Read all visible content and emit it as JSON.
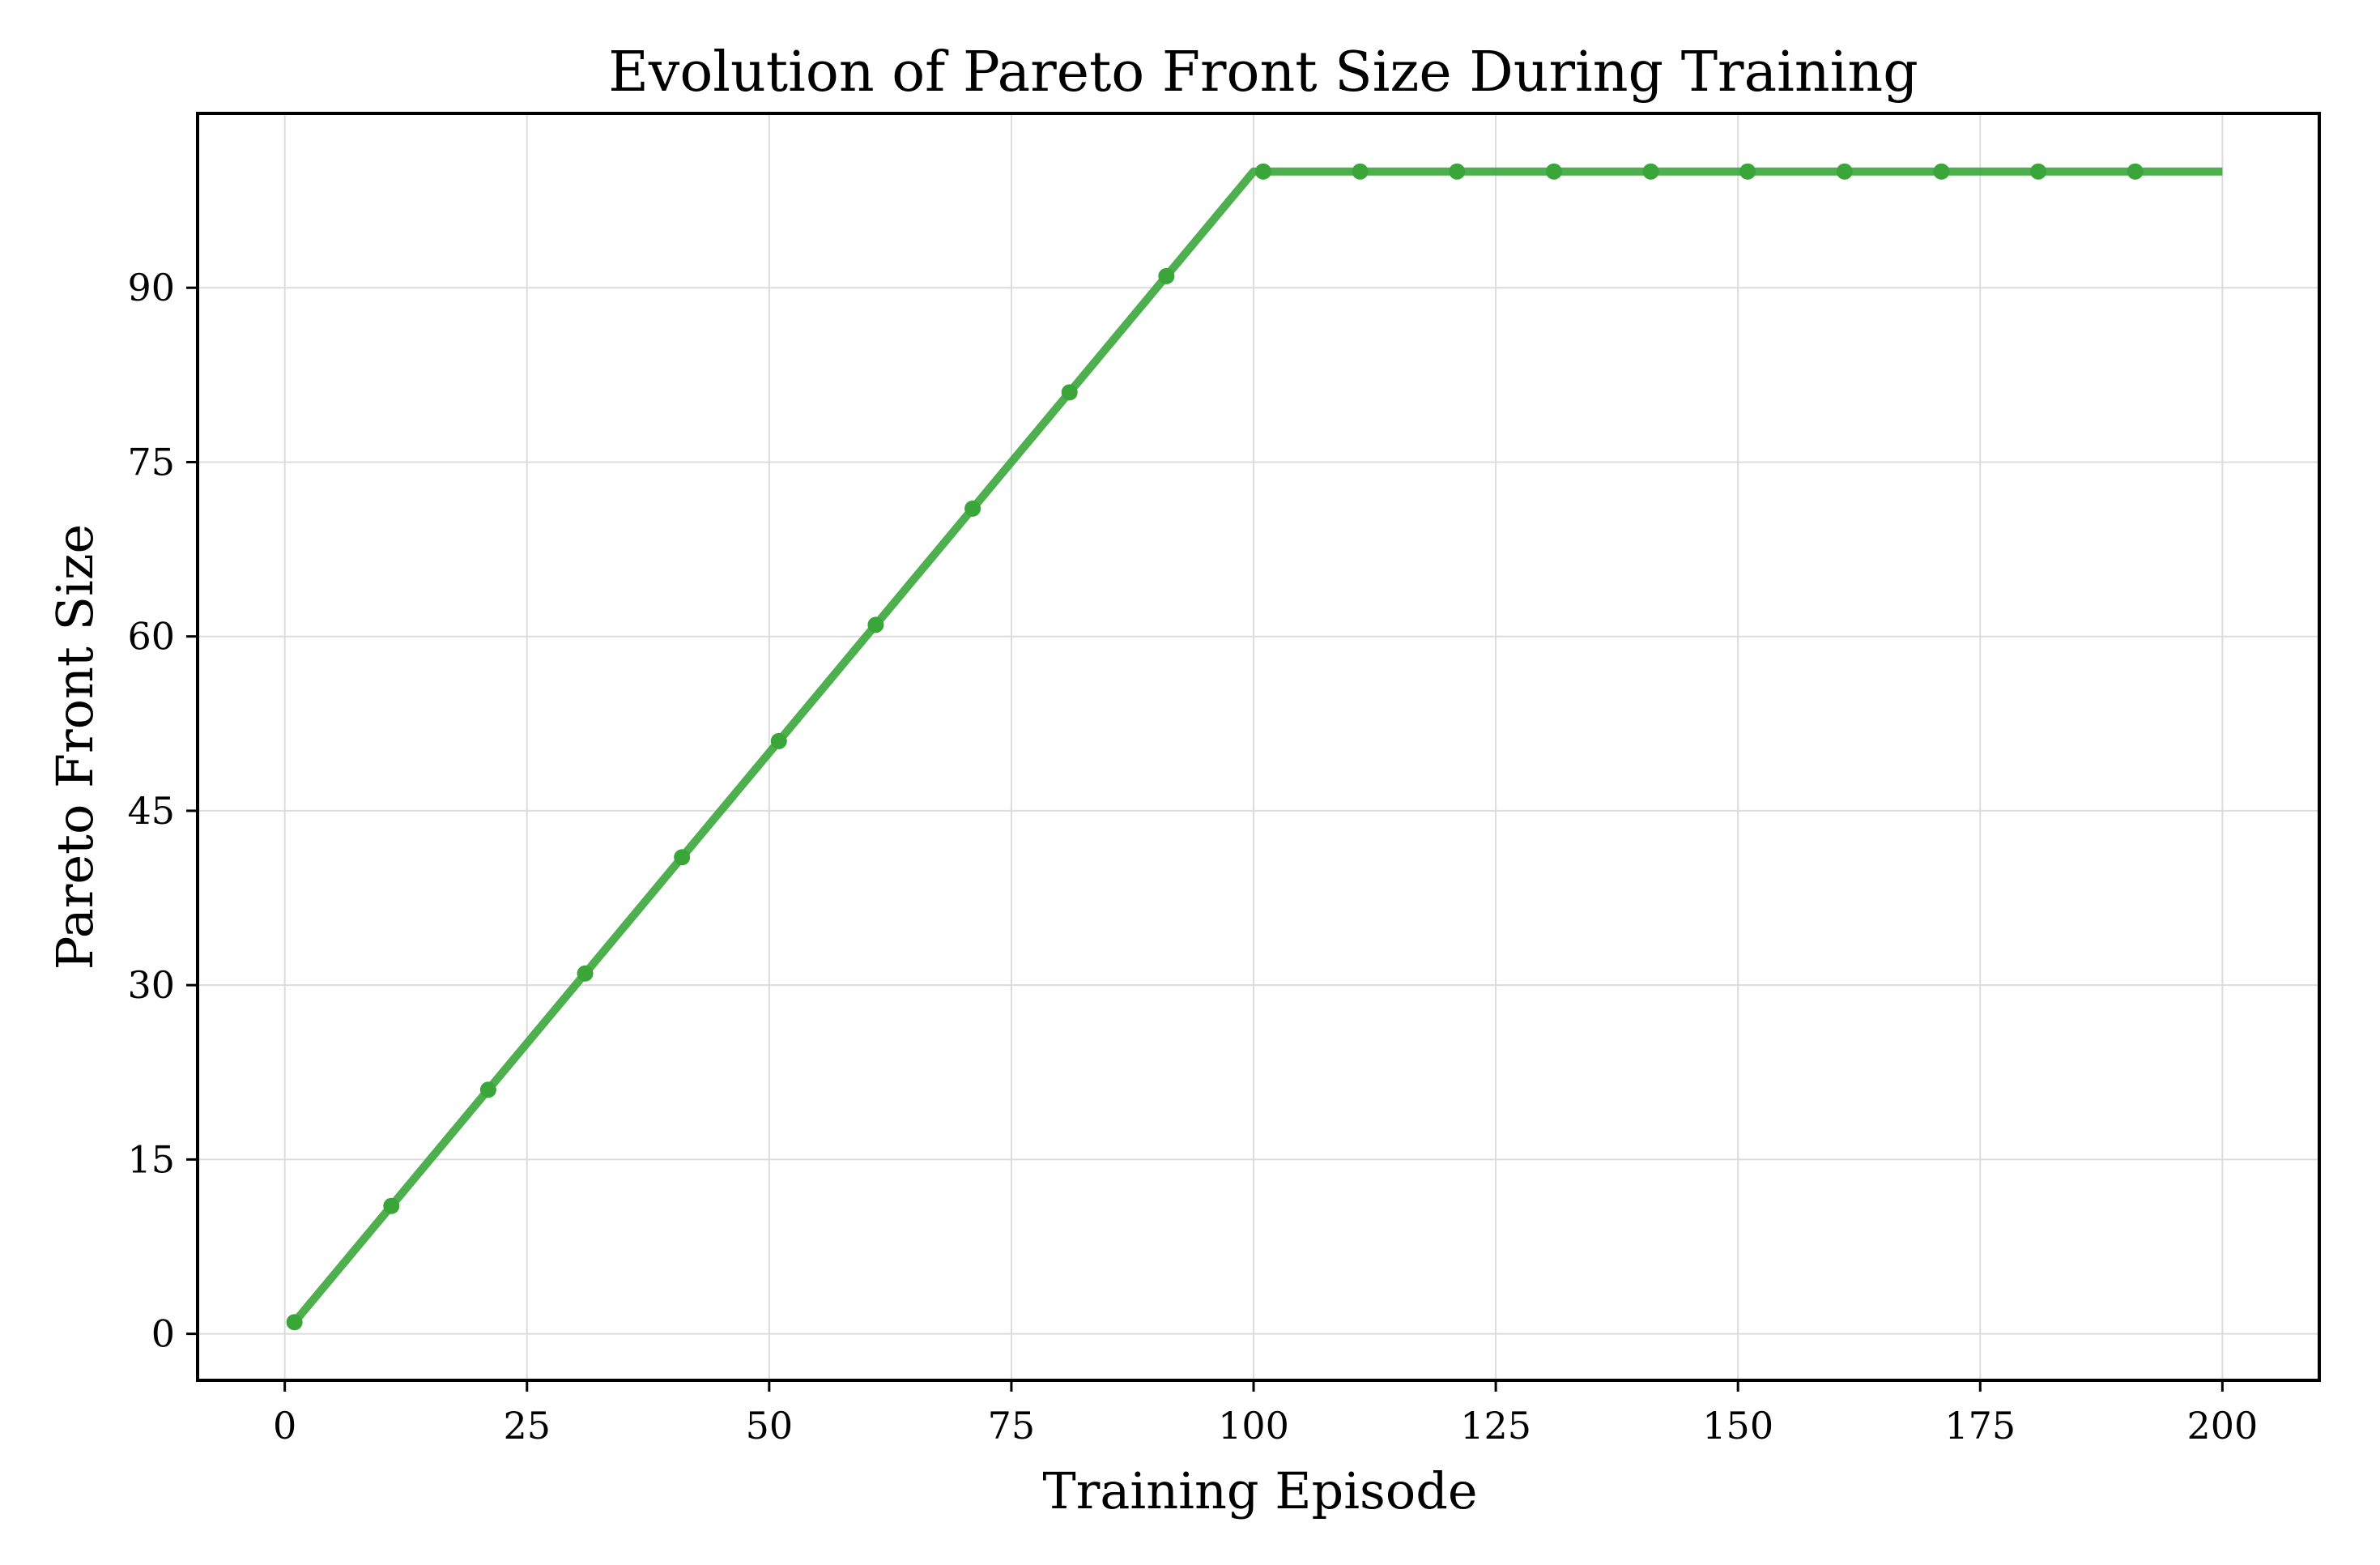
{
  "chart_data": {
    "type": "line",
    "title": "Evolution of Pareto Front Size During Training",
    "xlabel": "Training Episode",
    "ylabel": "Pareto Front Size",
    "xlim": [
      -9,
      210
    ],
    "ylim": [
      -4,
      105
    ],
    "xticks": [
      0,
      25,
      50,
      75,
      100,
      125,
      150,
      175,
      200
    ],
    "yticks": [
      0,
      15,
      30,
      45,
      60,
      75,
      90
    ],
    "xtick_labels": [
      "0",
      "25",
      "50",
      "75",
      "100",
      "125",
      "150",
      "175",
      "200"
    ],
    "ytick_labels": [
      "0",
      "15",
      "30",
      "45",
      "60",
      "75",
      "90"
    ],
    "grid": true,
    "series": [
      {
        "color": "#3aa63a",
        "line": {
          "x": [
            1,
            100,
            200
          ],
          "y": [
            1,
            100,
            100
          ]
        },
        "markers": {
          "x": [
            1,
            11,
            21,
            31,
            41,
            51,
            61,
            71,
            81,
            91,
            101,
            111,
            121,
            131,
            141,
            151,
            161,
            171,
            181,
            191
          ],
          "y": [
            1,
            11,
            21,
            31,
            41,
            51,
            61,
            71,
            81,
            91,
            100,
            100,
            100,
            100,
            100,
            100,
            100,
            100,
            100,
            100
          ]
        }
      }
    ]
  }
}
